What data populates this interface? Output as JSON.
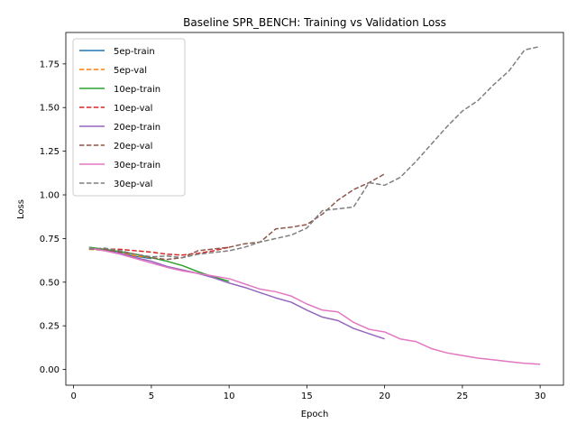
{
  "chart_data": {
    "type": "line",
    "title": "Baseline SPR_BENCH: Training vs Validation Loss",
    "xlabel": "Epoch",
    "ylabel": "Loss",
    "xlim": [
      -0.5,
      31.5
    ],
    "ylim": [
      -0.09,
      1.93
    ],
    "xticks": [
      0,
      5,
      10,
      15,
      20,
      25,
      30
    ],
    "yticks": [
      0.0,
      0.25,
      0.5,
      0.75,
      1.0,
      1.25,
      1.5,
      1.75
    ],
    "ytick_labels": [
      "0.00",
      "0.25",
      "0.50",
      "0.75",
      "1.00",
      "1.25",
      "1.50",
      "1.75"
    ],
    "grid": false,
    "legend_position": "top-left",
    "series": [
      {
        "name": "5ep-train",
        "color": "#1f77b4",
        "dash": "solid",
        "x": [
          1,
          2,
          3,
          4,
          5
        ],
        "y": [
          0.7,
          0.683,
          0.665,
          0.648,
          0.635
        ]
      },
      {
        "name": "5ep-val",
        "color": "#ff7f0e",
        "dash": "dashed",
        "x": [
          1,
          2,
          3,
          4,
          5
        ],
        "y": [
          0.688,
          0.682,
          0.67,
          0.65,
          0.64
        ]
      },
      {
        "name": "10ep-train",
        "color": "#2ca02c",
        "dash": "solid",
        "x": [
          1,
          2,
          3,
          4,
          5,
          6,
          7,
          8,
          9,
          10
        ],
        "y": [
          0.7,
          0.688,
          0.675,
          0.66,
          0.64,
          0.62,
          0.595,
          0.56,
          0.53,
          0.505
        ]
      },
      {
        "name": "10ep-val",
        "color": "#d62728",
        "dash": "dashed",
        "x": [
          1,
          2,
          3,
          4,
          5,
          6,
          7,
          8,
          9,
          10
        ],
        "y": [
          0.692,
          0.69,
          0.688,
          0.68,
          0.672,
          0.66,
          0.655,
          0.665,
          0.68,
          0.7
        ]
      },
      {
        "name": "20ep-train",
        "color": "#9467bd",
        "dash": "solid",
        "x": [
          1,
          2,
          3,
          4,
          5,
          6,
          7,
          8,
          9,
          10,
          11,
          12,
          13,
          14,
          15,
          16,
          17,
          18,
          19,
          20
        ],
        "y": [
          0.695,
          0.68,
          0.665,
          0.64,
          0.62,
          0.59,
          0.57,
          0.55,
          0.525,
          0.495,
          0.47,
          0.44,
          0.41,
          0.385,
          0.34,
          0.3,
          0.28,
          0.235,
          0.205,
          0.175
        ]
      },
      {
        "name": "20ep-val",
        "color": "#8c564b",
        "dash": "dashed",
        "x": [
          1,
          2,
          3,
          4,
          5,
          6,
          7,
          8,
          9,
          10,
          11,
          12,
          13,
          14,
          15,
          16,
          17,
          18,
          19,
          20
        ],
        "y": [
          0.69,
          0.688,
          0.672,
          0.66,
          0.64,
          0.63,
          0.64,
          0.68,
          0.69,
          0.7,
          0.72,
          0.73,
          0.805,
          0.815,
          0.83,
          0.89,
          0.97,
          1.03,
          1.07,
          1.12
        ]
      },
      {
        "name": "30ep-train",
        "color": "#e377c2",
        "dash": "solid",
        "x": [
          1,
          2,
          3,
          4,
          5,
          6,
          7,
          8,
          9,
          10,
          11,
          12,
          13,
          14,
          15,
          16,
          17,
          18,
          19,
          20,
          21,
          22,
          23,
          24,
          25,
          26,
          27,
          28,
          29,
          30
        ],
        "y": [
          0.695,
          0.68,
          0.66,
          0.635,
          0.61,
          0.585,
          0.565,
          0.55,
          0.535,
          0.52,
          0.49,
          0.46,
          0.445,
          0.42,
          0.375,
          0.34,
          0.33,
          0.27,
          0.23,
          0.215,
          0.175,
          0.16,
          0.12,
          0.095,
          0.08,
          0.065,
          0.055,
          0.045,
          0.035,
          0.03
        ]
      },
      {
        "name": "30ep-val",
        "color": "#7f7f7f",
        "dash": "dashed",
        "x": [
          1,
          2,
          3,
          4,
          5,
          6,
          7,
          8,
          9,
          10,
          11,
          12,
          13,
          14,
          15,
          16,
          17,
          18,
          19,
          20,
          21,
          22,
          23,
          24,
          25,
          26,
          27,
          28,
          29,
          30
        ],
        "y": [
          0.69,
          0.695,
          0.68,
          0.66,
          0.645,
          0.65,
          0.64,
          0.66,
          0.67,
          0.68,
          0.7,
          0.73,
          0.75,
          0.77,
          0.81,
          0.91,
          0.92,
          0.93,
          1.07,
          1.055,
          1.1,
          1.19,
          1.29,
          1.39,
          1.48,
          1.54,
          1.63,
          1.71,
          1.83,
          1.85
        ]
      }
    ]
  }
}
